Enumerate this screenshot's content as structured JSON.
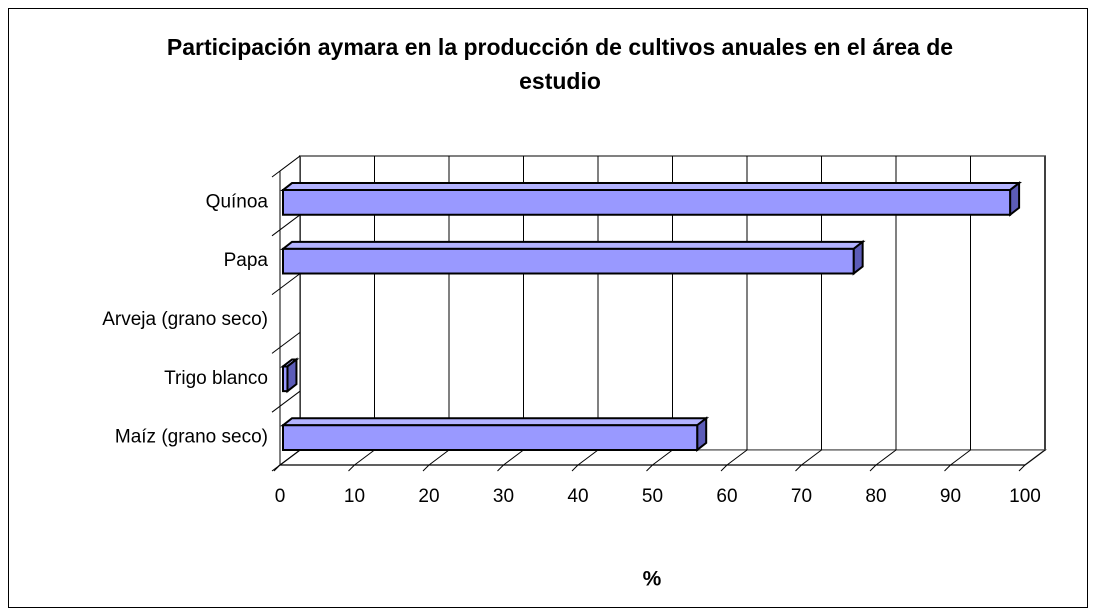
{
  "chart_data": {
    "type": "bar",
    "orientation": "horizontal",
    "title": "Participación aymara en la producción de cultivos anuales en el área de estudio",
    "x_label": "%",
    "categories": [
      "Maíz (grano seco)",
      "Trigo blanco",
      "Arveja (grano seco)",
      "Papa",
      "Quínoa"
    ],
    "values": [
      56,
      1,
      0,
      77,
      98
    ],
    "color": "#9999ff",
    "xlim": [
      0,
      100
    ],
    "xticks": [
      0,
      10,
      20,
      30,
      40,
      50,
      60,
      70,
      80,
      90,
      100
    ],
    "grid": true
  }
}
